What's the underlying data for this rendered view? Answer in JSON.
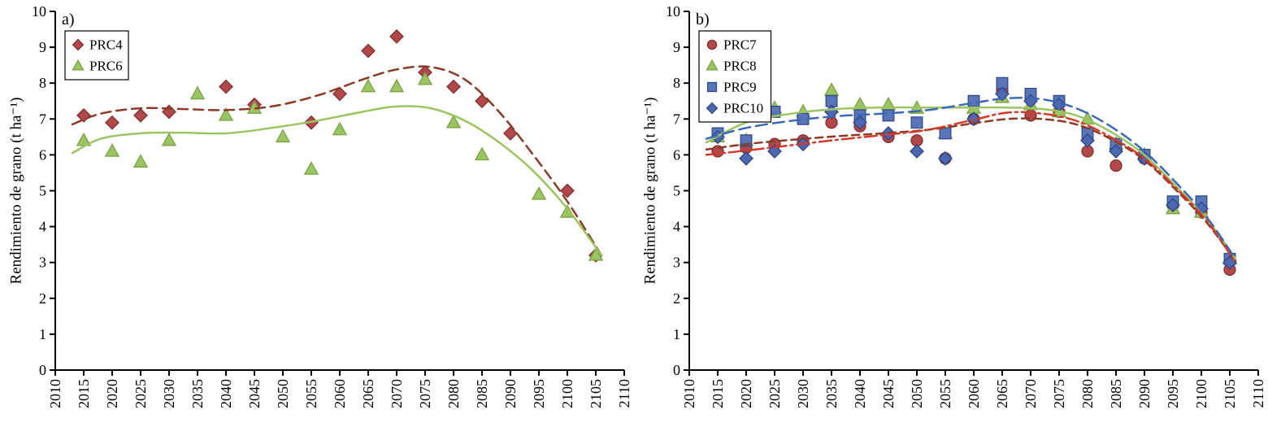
{
  "figure": {
    "panel_a_label": "a)",
    "panel_b_label": "b)"
  },
  "chart_data": [
    {
      "type": "scatter",
      "panel_label": "a)",
      "xlabel": "",
      "ylabel": "Rendimiento de grano (t ha⁻¹)",
      "xlim": [
        2010,
        2110
      ],
      "ylim": [
        0,
        10
      ],
      "xtick_step": 5,
      "ytick_step": 1,
      "grid": false,
      "legend_position": "top-left",
      "x": [
        2015,
        2020,
        2025,
        2030,
        2035,
        2040,
        2045,
        2050,
        2055,
        2060,
        2065,
        2070,
        2075,
        2080,
        2085,
        2090,
        2095,
        2100,
        2105
      ],
      "series": [
        {
          "name": "PRC4",
          "marker": "diamond",
          "fill": "#b2484a",
          "edge": "#7e2f31",
          "values": [
            7.1,
            6.9,
            7.1,
            7.2,
            null,
            7.9,
            7.4,
            null,
            6.9,
            7.7,
            8.9,
            9.3,
            8.3,
            7.9,
            7.5,
            6.6,
            null,
            5.0,
            3.2
          ],
          "trend": {
            "line": "dashed",
            "dash": "12 7",
            "color": "#8b3a26",
            "points": [
              [
                2013,
                6.85
              ],
              [
                2018,
                7.15
              ],
              [
                2025,
                7.3
              ],
              [
                2032,
                7.28
              ],
              [
                2040,
                7.25
              ],
              [
                2048,
                7.35
              ],
              [
                2056,
                7.65
              ],
              [
                2064,
                8.1
              ],
              [
                2070,
                8.38
              ],
              [
                2076,
                8.45
              ],
              [
                2082,
                8.1
              ],
              [
                2088,
                7.2
              ],
              [
                2094,
                6.0
              ],
              [
                2100,
                4.7
              ],
              [
                2106,
                3.2
              ]
            ]
          }
        },
        {
          "name": "PRC6",
          "marker": "triangle",
          "fill": "#9cc561",
          "edge": "#79a246",
          "values": [
            6.4,
            6.1,
            5.8,
            6.4,
            7.7,
            7.1,
            7.3,
            6.5,
            5.6,
            6.7,
            7.9,
            7.9,
            8.1,
            6.9,
            6.0,
            null,
            4.9,
            4.4,
            3.2
          ],
          "trend": {
            "line": "solid",
            "dash": "",
            "color": "#9cc561",
            "points": [
              [
                2013,
                6.05
              ],
              [
                2018,
                6.45
              ],
              [
                2025,
                6.6
              ],
              [
                2032,
                6.62
              ],
              [
                2040,
                6.6
              ],
              [
                2048,
                6.75
              ],
              [
                2056,
                6.95
              ],
              [
                2064,
                7.2
              ],
              [
                2070,
                7.35
              ],
              [
                2076,
                7.3
              ],
              [
                2082,
                6.95
              ],
              [
                2088,
                6.35
              ],
              [
                2094,
                5.55
              ],
              [
                2100,
                4.5
              ],
              [
                2106,
                3.2
              ]
            ]
          }
        }
      ]
    },
    {
      "type": "scatter",
      "panel_label": "b)",
      "xlabel": "",
      "ylabel": "Rendimiento de grano (t ha⁻¹)",
      "xlim": [
        2010,
        2110
      ],
      "ylim": [
        0,
        10
      ],
      "xtick_step": 5,
      "ytick_step": 1,
      "grid": false,
      "legend_position": "top-left",
      "x": [
        2015,
        2020,
        2025,
        2030,
        2035,
        2040,
        2045,
        2050,
        2055,
        2060,
        2065,
        2070,
        2075,
        2080,
        2085,
        2090,
        2095,
        2100,
        2105
      ],
      "series": [
        {
          "name": "PRC7",
          "marker": "circle",
          "fill": "#b2484a",
          "edge": "#7e2f31",
          "values": [
            6.1,
            6.2,
            6.3,
            6.4,
            6.9,
            6.8,
            6.5,
            6.4,
            5.9,
            7.0,
            7.8,
            7.1,
            7.2,
            6.1,
            5.7,
            5.9,
            4.6,
            4.4,
            2.8
          ],
          "trend": {
            "line": "dashed",
            "dash": "9 6",
            "color": "#8b3a26",
            "points": [
              [
                2013,
                6.15
              ],
              [
                2020,
                6.3
              ],
              [
                2028,
                6.42
              ],
              [
                2036,
                6.52
              ],
              [
                2044,
                6.6
              ],
              [
                2052,
                6.7
              ],
              [
                2060,
                6.88
              ],
              [
                2066,
                7.0
              ],
              [
                2072,
                7.0
              ],
              [
                2078,
                6.85
              ],
              [
                2084,
                6.45
              ],
              [
                2090,
                5.85
              ],
              [
                2096,
                4.95
              ],
              [
                2101,
                4.1
              ],
              [
                2106,
                3.05
              ]
            ]
          }
        },
        {
          "name": "PRC8",
          "marker": "triangle",
          "fill": "#9cc561",
          "edge": "#79a246",
          "values": [
            6.5,
            6.4,
            7.3,
            7.2,
            7.8,
            7.4,
            7.4,
            7.3,
            6.6,
            7.3,
            7.6,
            7.4,
            7.2,
            7.0,
            6.3,
            6.0,
            4.5,
            4.4,
            3.1
          ],
          "trend": {
            "line": "solid",
            "dash": "",
            "color": "#9cc561",
            "points": [
              [
                2013,
                6.35
              ],
              [
                2020,
                6.9
              ],
              [
                2028,
                7.15
              ],
              [
                2036,
                7.28
              ],
              [
                2044,
                7.32
              ],
              [
                2052,
                7.32
              ],
              [
                2060,
                7.32
              ],
              [
                2066,
                7.32
              ],
              [
                2072,
                7.28
              ],
              [
                2078,
                7.1
              ],
              [
                2084,
                6.65
              ],
              [
                2090,
                6.0
              ],
              [
                2096,
                5.05
              ],
              [
                2101,
                4.2
              ],
              [
                2106,
                3.1
              ]
            ]
          }
        },
        {
          "name": "PRC9",
          "marker": "square",
          "fill": "#5b76b8",
          "edge": "#2f4a8f",
          "values": [
            6.6,
            6.4,
            7.2,
            7.0,
            7.5,
            7.1,
            7.1,
            6.9,
            6.6,
            7.5,
            8.0,
            7.7,
            7.5,
            6.6,
            6.3,
            6.0,
            4.7,
            4.7,
            3.1
          ],
          "trend": {
            "line": "dashed",
            "dash": "14 7",
            "color": "#3b69b5",
            "points": [
              [
                2013,
                6.45
              ],
              [
                2020,
                6.75
              ],
              [
                2028,
                6.95
              ],
              [
                2036,
                7.08
              ],
              [
                2044,
                7.15
              ],
              [
                2052,
                7.25
              ],
              [
                2060,
                7.45
              ],
              [
                2066,
                7.58
              ],
              [
                2072,
                7.55
              ],
              [
                2078,
                7.3
              ],
              [
                2084,
                6.8
              ],
              [
                2090,
                6.1
              ],
              [
                2096,
                5.15
              ],
              [
                2101,
                4.25
              ],
              [
                2106,
                3.1
              ]
            ]
          }
        },
        {
          "name": "PRC10",
          "marker": "diamond",
          "fill": "#4c68b0",
          "edge": "#2d4489",
          "values": [
            6.5,
            5.9,
            6.1,
            6.3,
            7.2,
            6.9,
            6.6,
            6.1,
            5.9,
            7.0,
            7.7,
            7.5,
            7.4,
            6.4,
            6.1,
            5.9,
            4.6,
            4.5,
            3.0
          ],
          "trend": {
            "line": "dash-dot",
            "dash": "15 5 3 5",
            "color": "#d43a2a",
            "points": [
              [
                2013,
                6.0
              ],
              [
                2020,
                6.12
              ],
              [
                2028,
                6.27
              ],
              [
                2036,
                6.42
              ],
              [
                2044,
                6.55
              ],
              [
                2052,
                6.7
              ],
              [
                2060,
                6.98
              ],
              [
                2066,
                7.18
              ],
              [
                2072,
                7.15
              ],
              [
                2078,
                6.95
              ],
              [
                2084,
                6.5
              ],
              [
                2090,
                5.9
              ],
              [
                2096,
                5.0
              ],
              [
                2101,
                4.15
              ],
              [
                2106,
                3.0
              ]
            ]
          }
        }
      ]
    }
  ]
}
